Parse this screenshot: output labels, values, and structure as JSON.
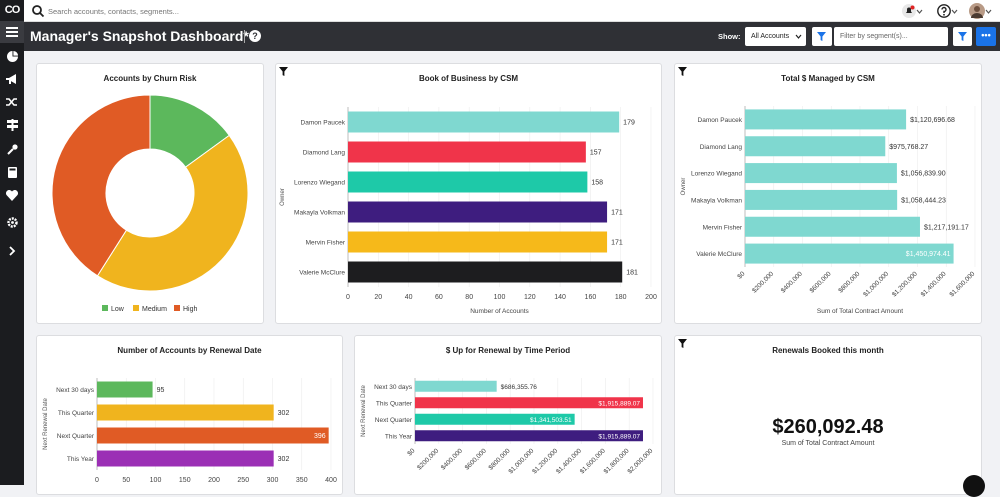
{
  "sidebar": {
    "logo": "CO"
  },
  "topbar": {
    "search_placeholder": "Search accounts, contacts, segments..."
  },
  "titlebar": {
    "title": "Manager's Snapshot Dashboard*",
    "help_label": "?",
    "show_label": "Show:",
    "accounts_select": "All Accounts",
    "segment_placeholder": "Filter by segment(s)...",
    "more_label": "•••"
  },
  "cards": {
    "churn": {
      "title": "Accounts by Churn Risk"
    },
    "book": {
      "title": "Book of Business by CSM"
    },
    "total": {
      "title": "Total $ Managed by CSM"
    },
    "renewal_date": {
      "title": "Number of Accounts by Renewal Date"
    },
    "renewal_period": {
      "title": "$ Up for Renewal by Time Period"
    },
    "booked": {
      "title": "Renewals Booked this month",
      "value": "$260,092.48",
      "caption": "Sum of Total Contract Amount"
    }
  },
  "chart_data": [
    {
      "id": "churn",
      "type": "pie",
      "title": "Accounts by Churn Risk",
      "labels": [
        "Low",
        "Medium",
        "High"
      ],
      "values": [
        15,
        44,
        41
      ],
      "colors": [
        "#5cb85c",
        "#f0b41e",
        "#e05b25"
      ],
      "legend": "bottom"
    },
    {
      "id": "book",
      "type": "bar",
      "orientation": "horizontal",
      "title": "Book of Business by CSM",
      "categories": [
        "Damon Paucek",
        "Diamond Lang",
        "Lorenzo Wiegand",
        "Makayla Volkman",
        "Mervin Fisher",
        "Valerie McClure"
      ],
      "values": [
        179,
        157,
        158,
        171,
        171,
        181
      ],
      "labels": [
        "179",
        "157",
        "158",
        "171",
        "171",
        "181"
      ],
      "colors": [
        "#7fd8d0",
        "#f0344a",
        "#1ec9a8",
        "#3e1d7f",
        "#f6b91a",
        "#1d1d1f"
      ],
      "xlabel": "Number of Accounts",
      "ylabel": "Owner",
      "xlim": [
        0,
        200
      ],
      "xticks": [
        "0",
        "20",
        "40",
        "60",
        "80",
        "100",
        "120",
        "140",
        "160",
        "180",
        "200"
      ]
    },
    {
      "id": "total",
      "type": "bar",
      "orientation": "horizontal",
      "title": "Total $ Managed by CSM",
      "categories": [
        "Damon Paucek",
        "Diamond Lang",
        "Lorenzo Wiegand",
        "Makayla Volkman",
        "Mervin Fisher",
        "Valerie McClure"
      ],
      "values": [
        1120696.68,
        975768.27,
        1056839.9,
        1058444.23,
        1217191.17,
        1450974.41
      ],
      "labels": [
        "$1,120,696.68",
        "$975,768.27",
        "$1,056,839.90",
        "$1,058,444.23",
        "$1,217,191.17",
        "$1,450,974.41"
      ],
      "colors": [
        "#7fd8d0",
        "#7fd8d0",
        "#7fd8d0",
        "#7fd8d0",
        "#7fd8d0",
        "#7fd8d0"
      ],
      "xlabel": "Sum of Total Contract Amount",
      "ylabel": "Owner",
      "xlim": [
        0,
        1600000
      ],
      "xticks": [
        "$0",
        "$200,000",
        "$400,000",
        "$600,000",
        "$800,000",
        "$1,000,000",
        "$1,200,000",
        "$1,400,000",
        "$1,600,000"
      ]
    },
    {
      "id": "renewal_date",
      "type": "bar",
      "orientation": "horizontal",
      "title": "Number of Accounts by Renewal Date",
      "categories": [
        "Next 30 days",
        "This Quarter",
        "Next Quarter",
        "This Year"
      ],
      "values": [
        95,
        302,
        396,
        302
      ],
      "labels": [
        "95",
        "302",
        "396",
        "302"
      ],
      "colors": [
        "#5cb85c",
        "#f0b41e",
        "#e05b25",
        "#9b2fb5"
      ],
      "ylabel": "Next Renewal Date",
      "xlim": [
        0,
        400
      ],
      "xticks": [
        "0",
        "50",
        "100",
        "150",
        "200",
        "250",
        "300",
        "350",
        "400"
      ]
    },
    {
      "id": "renewal_period",
      "type": "bar",
      "orientation": "horizontal",
      "title": "$ Up for Renewal by Time Period",
      "categories": [
        "Next 30 days",
        "This Quarter",
        "Next Quarter",
        "This Year"
      ],
      "values": [
        686355.76,
        1915889.07,
        1341503.51,
        1915889.07
      ],
      "labels": [
        "$686,355.76",
        "$1,915,889.07",
        "$1,341,503.51",
        "$1,915,889.07"
      ],
      "colors": [
        "#7fd8d0",
        "#f0344a",
        "#1ec9a8",
        "#3e1d7f"
      ],
      "ylabel": "Next Renewal Date",
      "xlim": [
        0,
        2000000
      ],
      "xticks": [
        "$0",
        "$200,000",
        "$400,000",
        "$600,000",
        "$800,000",
        "$1,000,000",
        "$1,200,000",
        "$1,400,000",
        "$1,600,000",
        "$1,800,000",
        "$2,000,000"
      ]
    }
  ]
}
